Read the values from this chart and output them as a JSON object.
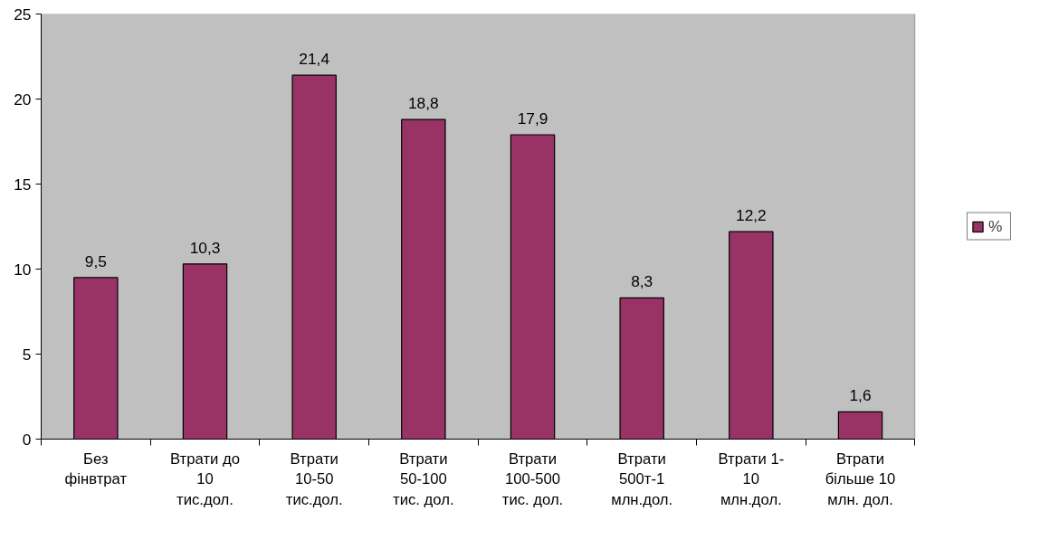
{
  "chart_data": {
    "type": "bar",
    "categories": [
      "Без\nфінвтрат",
      "Втрати до\n10\nтис.дол.",
      "Втрати\n10-50\nтис.дол.",
      "Втрати\n50-100\nтис. дол.",
      "Втрати\n100-500\nтис. дол.",
      "Втрати\n500т-1\nмлн.дол.",
      "Втрати 1-\n10\nмлн.дол.",
      "Втрати\nбільше 10\nмлн. дол."
    ],
    "series": [
      {
        "name": "%",
        "color": "#993366",
        "values": [
          9.5,
          10.3,
          21.4,
          18.8,
          17.9,
          8.3,
          12.2,
          1.6
        ]
      }
    ],
    "value_labels": [
      "9,5",
      "10,3",
      "21,4",
      "18,8",
      "17,9",
      "8,3",
      "12,2",
      "1,6"
    ],
    "ylim": [
      0,
      25
    ],
    "yticks": [
      0,
      5,
      10,
      15,
      20,
      25
    ],
    "legend": "right"
  }
}
